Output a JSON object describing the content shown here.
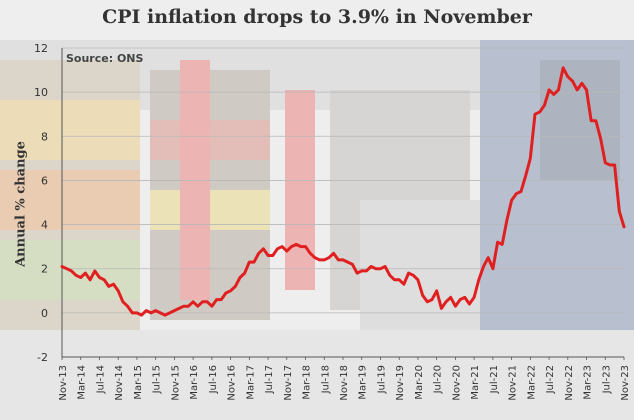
{
  "header": {
    "title": "CPI inflation drops to 3.9% in November",
    "source": "Source: ONS"
  },
  "colors": {
    "line": "#e02020",
    "axis": "#555555",
    "grid": "#b8b8b8",
    "text": "#333333"
  },
  "chart_data": {
    "type": "line",
    "title": "CPI inflation drops to 3.9% in November",
    "subtitle": "Source: ONS",
    "xlabel": "",
    "ylabel": "Annual % change",
    "ylim": [
      -2,
      12
    ],
    "yticks": [
      -2,
      0,
      2,
      4,
      6,
      8,
      10,
      12
    ],
    "grid": "horizontal",
    "legend": "none",
    "start": "Nov-13",
    "end": "Nov-23",
    "xticks": [
      "Nov-13",
      "Mar-14",
      "Jul-14",
      "Nov-14",
      "Mar-15",
      "Jul-15",
      "Nov-15",
      "Mar-16",
      "Jul-16",
      "Nov-16",
      "Mar-17",
      "Jul-17",
      "Nov-17",
      "Mar-18",
      "Jul-18",
      "Nov-18",
      "Mar-19",
      "Jul-19",
      "Nov-19",
      "Mar-20",
      "Jul-20",
      "Nov-20",
      "Mar-21",
      "Jul-21",
      "Nov-21",
      "Mar-22",
      "Jul-22",
      "Nov-22",
      "Mar-23",
      "Jul-23",
      "Nov-23"
    ],
    "series": [
      {
        "values": [
          2.1,
          2.0,
          1.9,
          1.7,
          1.6,
          1.8,
          1.5,
          1.9,
          1.6,
          1.5,
          1.2,
          1.3,
          1.0,
          0.5,
          0.3,
          0.0,
          0.0,
          -0.1,
          0.1,
          0.0,
          0.1,
          0.0,
          -0.1,
          0.0,
          0.1,
          0.2,
          0.3,
          0.3,
          0.5,
          0.3,
          0.5,
          0.5,
          0.3,
          0.6,
          0.6,
          0.9,
          1.0,
          1.2,
          1.6,
          1.8,
          2.3,
          2.3,
          2.7,
          2.9,
          2.6,
          2.6,
          2.9,
          3.0,
          2.8,
          3.0,
          3.1,
          3.0,
          3.0,
          2.7,
          2.5,
          2.4,
          2.4,
          2.5,
          2.7,
          2.4,
          2.4,
          2.3,
          2.2,
          1.8,
          1.9,
          1.9,
          2.1,
          2.0,
          2.0,
          2.1,
          1.7,
          1.5,
          1.5,
          1.3,
          1.8,
          1.7,
          1.5,
          0.8,
          0.5,
          0.6,
          1.0,
          0.2,
          0.5,
          0.7,
          0.3,
          0.6,
          0.7,
          0.4,
          0.7,
          1.5,
          2.1,
          2.5,
          2.0,
          3.2,
          3.1,
          4.2,
          5.1,
          5.4,
          5.5,
          6.2,
          7.0,
          9.0,
          9.1,
          9.4,
          10.1,
          9.9,
          10.1,
          11.1,
          10.7,
          10.5,
          10.1,
          10.4,
          10.1,
          8.7,
          8.7,
          7.9,
          6.8,
          6.7,
          6.7,
          4.6,
          3.9
        ]
      }
    ]
  }
}
